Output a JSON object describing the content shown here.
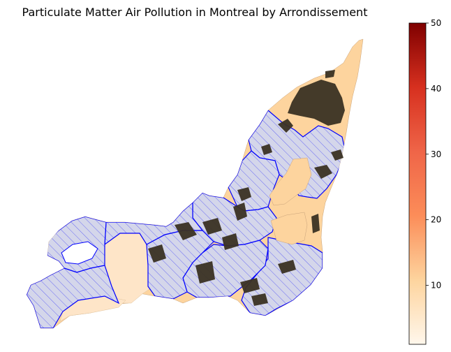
{
  "chart_data": {
    "type": "choropleth",
    "title": "Particulate Matter Air Pollution in Montreal by Arrondissement",
    "colorbar": {
      "colormap": "OrRd",
      "range": [
        1,
        50
      ],
      "ticks": [
        "10",
        "20",
        "30",
        "40",
        "50"
      ]
    },
    "legend_styles": {
      "hatched_region_fill": "#d4d6ea",
      "hatched_region_edge": "#0000ff",
      "low_value_fill": "#fdd49e",
      "lowest_value_fill": "#fee5c8",
      "dark_area_fill": "#3b3223"
    }
  }
}
